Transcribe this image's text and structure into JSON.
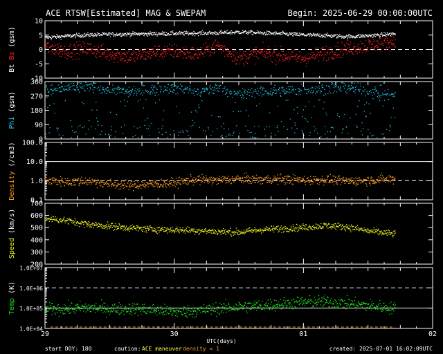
{
  "header": {
    "title": "ACE RTSW[Estimated] MAG & SWEPAM",
    "begin": "Begin: 2025-06-29 00:00:00UTC"
  },
  "footer": {
    "start_doy": "start DOY: 180",
    "caution": "caution:",
    "maneuver": "ACE maneuver",
    "density_note": "density < 1",
    "created": "created: 2025-07-01 16:02:09UTC"
  },
  "xaxis": {
    "label": "UTC(days)",
    "range_hours": [
      0,
      72
    ],
    "ticks": [
      {
        "hour": 0,
        "label": "29"
      },
      {
        "hour": 24,
        "label": "30"
      },
      {
        "hour": 48,
        "label": "01"
      },
      {
        "hour": 72,
        "label": "02"
      }
    ]
  },
  "colors": {
    "bt": "#ffffff",
    "bz": "#ff2020",
    "phi": "#22c4e8",
    "density": "#ff9a20",
    "speed": "#f0f020",
    "temp": "#20e020",
    "caution": "#ffff40",
    "density_note": "#ff9a20"
  },
  "chart_data": [
    {
      "type": "scatter",
      "panel": "mag",
      "ylabel_parts": [
        {
          "text": "Bt",
          "color": "#ffffff"
        },
        {
          "text": "Bz",
          "color": "#ff2020"
        },
        {
          "text": "(gsm)",
          "color": "#ffffff"
        }
      ],
      "ylim": [
        -10,
        10
      ],
      "ticks": [
        {
          "v": 10,
          "label": "10"
        },
        {
          "v": 5,
          "label": "5"
        },
        {
          "v": 0,
          "label": "0"
        },
        {
          "v": -5,
          "label": "-5"
        },
        {
          "v": -10,
          "label": "-10"
        }
      ],
      "reference_lines": [
        {
          "v": 0,
          "style": "dashed"
        }
      ],
      "data_end_hour": 65,
      "series": [
        {
          "key": "Bt",
          "color": "#ffffff",
          "x": [
            0,
            4,
            8,
            12,
            16,
            20,
            24,
            28,
            32,
            36,
            40,
            44,
            48,
            52,
            56,
            60,
            65
          ],
          "y": [
            4.3,
            4.8,
            5.2,
            5.4,
            5.5,
            5.6,
            5.7,
            5.8,
            5.9,
            6.2,
            5.9,
            5.6,
            5.2,
            5.0,
            4.6,
            4.9,
            5.6
          ]
        },
        {
          "key": "Bz",
          "color": "#ff2020",
          "x": [
            0,
            4,
            8,
            12,
            16,
            20,
            24,
            28,
            32,
            36,
            40,
            44,
            48,
            52,
            56,
            60,
            65
          ],
          "y": [
            1.0,
            -0.5,
            0.5,
            -1.5,
            -2.5,
            -1.0,
            -0.5,
            -1.5,
            1.5,
            -3.0,
            -1.0,
            -2.0,
            -3.0,
            -1.0,
            0.5,
            1.5,
            3.0
          ]
        }
      ]
    },
    {
      "type": "scatter",
      "panel": "phi",
      "ylabel_parts": [
        {
          "text": "Phi",
          "color": "#22c4e8"
        },
        {
          "text": "(gsm)",
          "color": "#ffffff"
        }
      ],
      "ylim": [
        0,
        360
      ],
      "ticks": [
        {
          "v": 360,
          "label": "360"
        },
        {
          "v": 270,
          "label": "270"
        },
        {
          "v": 180,
          "label": "180"
        },
        {
          "v": 90,
          "label": "90"
        },
        {
          "v": 0,
          "label": "0"
        }
      ],
      "data_end_hour": 65,
      "series": [
        {
          "key": "Phi",
          "color": "#22c4e8",
          "x": [
            0,
            4,
            8,
            12,
            16,
            20,
            24,
            28,
            32,
            36,
            40,
            44,
            48,
            52,
            56,
            60,
            65
          ],
          "y": [
            300,
            320,
            330,
            315,
            300,
            310,
            325,
            300,
            320,
            280,
            300,
            305,
            310,
            320,
            330,
            300,
            280
          ]
        }
      ]
    },
    {
      "type": "scatter",
      "panel": "density",
      "ylabel_parts": [
        {
          "text": "Density",
          "color": "#ff9a20"
        },
        {
          "text": "(/cm3)",
          "color": "#ffffff"
        }
      ],
      "scale": "log",
      "ylim": [
        0.1,
        100
      ],
      "ticks": [
        {
          "v": 100,
          "label": "100.0"
        },
        {
          "v": 10,
          "label": "10.0"
        },
        {
          "v": 1,
          "label": "1.0"
        },
        {
          "v": 0.1,
          "label": "0.1"
        }
      ],
      "reference_lines": [
        {
          "v": 10,
          "style": "solid"
        },
        {
          "v": 1,
          "style": "dashed"
        }
      ],
      "data_end_hour": 65,
      "series": [
        {
          "key": "Density",
          "color": "#ff9a20",
          "x": [
            0,
            4,
            8,
            12,
            16,
            20,
            24,
            28,
            32,
            36,
            40,
            44,
            48,
            52,
            56,
            60,
            65
          ],
          "y": [
            1.1,
            0.9,
            1.0,
            0.7,
            0.6,
            0.7,
            0.8,
            1.2,
            1.1,
            1.3,
            1.2,
            1.3,
            1.1,
            1.2,
            1.0,
            1.1,
            1.3
          ]
        }
      ]
    },
    {
      "type": "scatter",
      "panel": "speed",
      "ylabel_parts": [
        {
          "text": "Speed",
          "color": "#f0f020"
        },
        {
          "text": "(km/s)",
          "color": "#ffffff"
        }
      ],
      "ylim": [
        200,
        700
      ],
      "ticks": [
        {
          "v": 700,
          "label": "700"
        },
        {
          "v": 600,
          "label": "600"
        },
        {
          "v": 500,
          "label": "500"
        },
        {
          "v": 400,
          "label": "400"
        },
        {
          "v": 300,
          "label": "300"
        },
        {
          "v": 200,
          "label": "200"
        }
      ],
      "data_end_hour": 65,
      "series": [
        {
          "key": "Speed",
          "color": "#f0f020",
          "x": [
            0,
            4,
            8,
            12,
            16,
            20,
            24,
            28,
            32,
            36,
            40,
            44,
            48,
            52,
            56,
            60,
            65
          ],
          "y": [
            580,
            560,
            530,
            515,
            500,
            490,
            485,
            480,
            470,
            465,
            485,
            495,
            505,
            520,
            510,
            475,
            450
          ]
        }
      ]
    },
    {
      "type": "scatter",
      "panel": "temp",
      "ylabel_parts": [
        {
          "text": "Temp",
          "color": "#20e020"
        },
        {
          "text": "(K)",
          "color": "#ffffff"
        }
      ],
      "scale": "log",
      "ylim": [
        10000,
        10000000
      ],
      "ticks": [
        {
          "v": 10000000,
          "label": "1.0E+07"
        },
        {
          "v": 1000000,
          "label": "1.0E+06"
        },
        {
          "v": 100000,
          "label": "1.0E+05"
        },
        {
          "v": 10000,
          "label": "1.0E+04"
        }
      ],
      "reference_lines": [
        {
          "v": 1000000,
          "style": "dashed"
        },
        {
          "v": 100000,
          "style": "solid"
        }
      ],
      "data_end_hour": 65,
      "series": [
        {
          "key": "Temp",
          "color": "#20e020",
          "x": [
            0,
            4,
            8,
            12,
            16,
            20,
            24,
            28,
            32,
            36,
            40,
            44,
            48,
            52,
            56,
            60,
            65
          ],
          "y": [
            90000,
            100000,
            110000,
            95000,
            100000,
            85000,
            70000,
            75000,
            100000,
            120000,
            140000,
            170000,
            200000,
            220000,
            180000,
            140000,
            100000
          ]
        }
      ]
    }
  ]
}
